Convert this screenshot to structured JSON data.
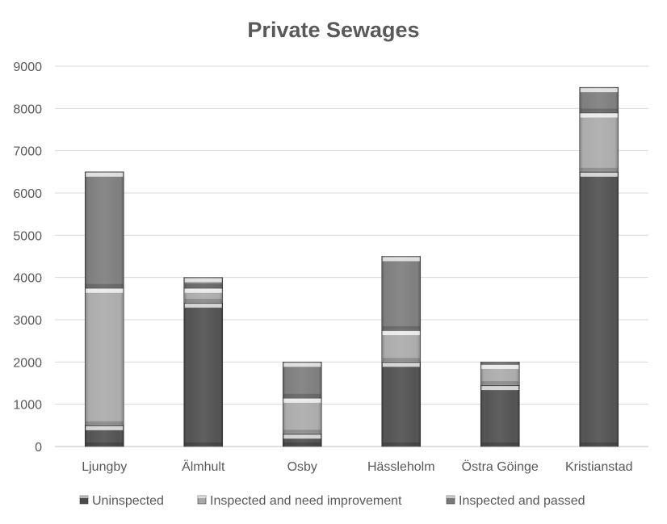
{
  "chart_data": {
    "type": "bar",
    "stacked": true,
    "title": "Private Sewages",
    "xlabel": "",
    "ylabel": "",
    "ylim": [
      0,
      9000
    ],
    "yticks": [
      0,
      1000,
      2000,
      3000,
      4000,
      5000,
      6000,
      7000,
      8000,
      9000
    ],
    "grid": true,
    "legend_position": "bottom",
    "categories": [
      "Ljungby",
      "Älmhult",
      "Osby",
      "Hässleholm",
      "Östra Göinge",
      "Kristianstad"
    ],
    "series": [
      {
        "name": "Uninspected",
        "color": "#4a4a4a",
        "values": [
          500,
          3400,
          300,
          2000,
          1450,
          6500
        ]
      },
      {
        "name": "Inspected and need improvement",
        "color": "#a8a8a8",
        "values": [
          3250,
          350,
          850,
          750,
          500,
          1400
        ]
      },
      {
        "name": "Inspected and passed",
        "color": "#787878",
        "values": [
          2750,
          250,
          850,
          1750,
          50,
          600
        ]
      }
    ]
  }
}
